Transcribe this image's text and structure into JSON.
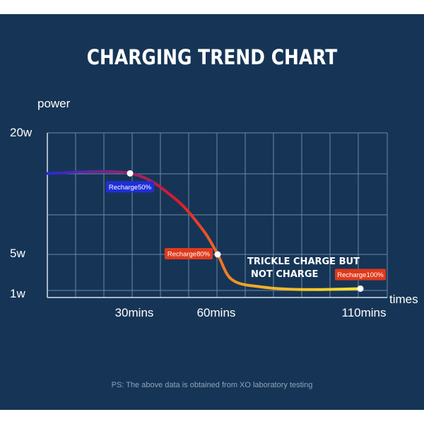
{
  "chart_data": {
    "type": "line",
    "title": "CHARGING TREND CHART",
    "ylabel": "power",
    "xlabel": "times",
    "x_ticks": [
      "30mins",
      "60mins",
      "110mins"
    ],
    "y_ticks": [
      "20w",
      "5w",
      "1w"
    ],
    "series": [
      {
        "points": [
          {
            "x": 0,
            "y": 15
          },
          {
            "x": 30,
            "y": 15
          },
          {
            "x": 45,
            "y": 12
          },
          {
            "x": 55,
            "y": 8
          },
          {
            "x": 60,
            "y": 5
          },
          {
            "x": 65,
            "y": 2.2
          },
          {
            "x": 75,
            "y": 1.4
          },
          {
            "x": 90,
            "y": 1.1
          },
          {
            "x": 110,
            "y": 1.2
          }
        ]
      }
    ],
    "markers": [
      {
        "x": 30,
        "y": 15,
        "label": "Recharge50%",
        "color": "#1f2fd6"
      },
      {
        "x": 60,
        "y": 5,
        "label": "Recharge80%",
        "color": "#e0391c"
      },
      {
        "x": 110,
        "y": 1.2,
        "label": "Recharge100%",
        "color": "#e0391c"
      }
    ],
    "annotation": [
      "TRICKLE CHARGE BUT",
      "NOT CHARGE"
    ],
    "grid": true
  },
  "colors": {
    "background": "#163556",
    "grid": "#6f88a6",
    "gradient": [
      "#2a2ad6",
      "#e0192a",
      "#f4a224",
      "#f6e42a"
    ]
  },
  "footnote": "PS: The above data is obtained from XO laboratory testing"
}
